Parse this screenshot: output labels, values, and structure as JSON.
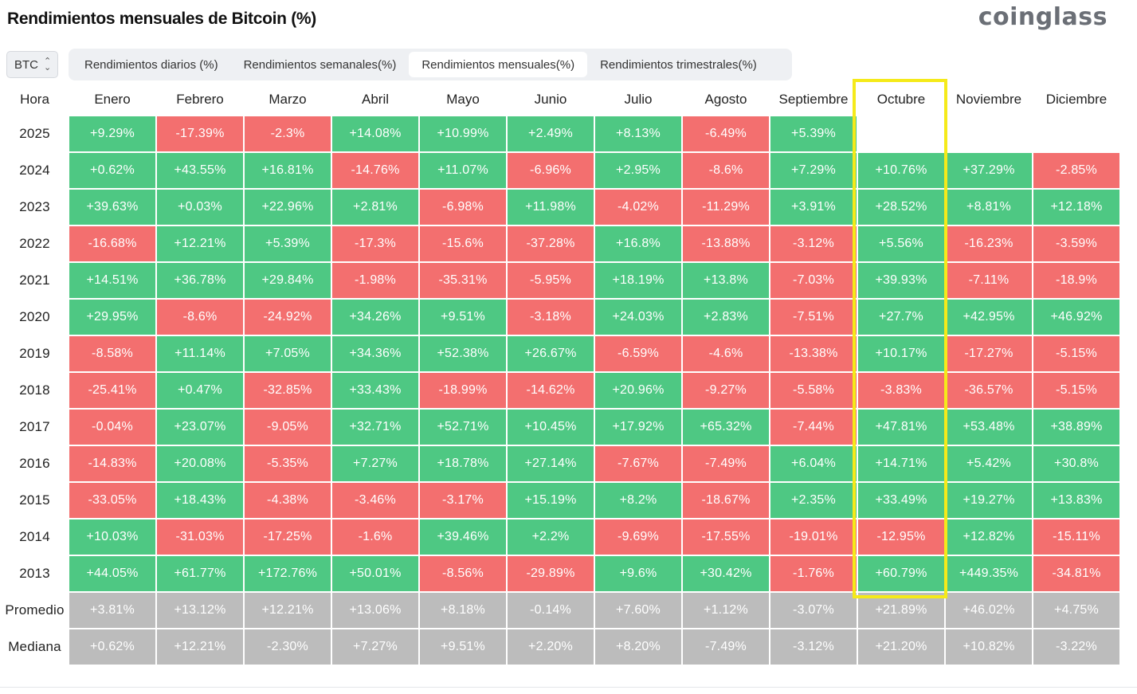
{
  "title": "Rendimientos mensuales de Bitcoin (%)",
  "brand": "coinglass",
  "asset_selector": {
    "value": "BTC"
  },
  "tabs": [
    {
      "label": "Rendimientos diarios (%)",
      "active": false
    },
    {
      "label": "Rendimientos semanales(%)",
      "active": false
    },
    {
      "label": "Rendimientos mensuales(%)",
      "active": true
    },
    {
      "label": "Rendimientos trimestrales(%)",
      "active": false
    }
  ],
  "colors": {
    "positive": "#4ec883",
    "negative": "#f36f6f",
    "stat": "#bcbcbc",
    "highlight": "#f5ea1a"
  },
  "table": {
    "row_header": "Hora",
    "columns": [
      "Enero",
      "Febrero",
      "Marzo",
      "Abril",
      "Mayo",
      "Junio",
      "Julio",
      "Agosto",
      "Septiembre",
      "Octubre",
      "Noviembre",
      "Diciembre"
    ],
    "highlighted_column": "Octubre",
    "rows": [
      {
        "label": "2025",
        "type": "year",
        "values": [
          "+9.29%",
          "-17.39%",
          "-2.3%",
          "+14.08%",
          "+10.99%",
          "+2.49%",
          "+8.13%",
          "-6.49%",
          "+5.39%",
          "",
          "",
          ""
        ]
      },
      {
        "label": "2024",
        "type": "year",
        "values": [
          "+0.62%",
          "+43.55%",
          "+16.81%",
          "-14.76%",
          "+11.07%",
          "-6.96%",
          "+2.95%",
          "-8.6%",
          "+7.29%",
          "+10.76%",
          "+37.29%",
          "-2.85%"
        ]
      },
      {
        "label": "2023",
        "type": "year",
        "values": [
          "+39.63%",
          "+0.03%",
          "+22.96%",
          "+2.81%",
          "-6.98%",
          "+11.98%",
          "-4.02%",
          "-11.29%",
          "+3.91%",
          "+28.52%",
          "+8.81%",
          "+12.18%"
        ]
      },
      {
        "label": "2022",
        "type": "year",
        "values": [
          "-16.68%",
          "+12.21%",
          "+5.39%",
          "-17.3%",
          "-15.6%",
          "-37.28%",
          "+16.8%",
          "-13.88%",
          "-3.12%",
          "+5.56%",
          "-16.23%",
          "-3.59%"
        ]
      },
      {
        "label": "2021",
        "type": "year",
        "values": [
          "+14.51%",
          "+36.78%",
          "+29.84%",
          "-1.98%",
          "-35.31%",
          "-5.95%",
          "+18.19%",
          "+13.8%",
          "-7.03%",
          "+39.93%",
          "-7.11%",
          "-18.9%"
        ]
      },
      {
        "label": "2020",
        "type": "year",
        "values": [
          "+29.95%",
          "-8.6%",
          "-24.92%",
          "+34.26%",
          "+9.51%",
          "-3.18%",
          "+24.03%",
          "+2.83%",
          "-7.51%",
          "+27.7%",
          "+42.95%",
          "+46.92%"
        ]
      },
      {
        "label": "2019",
        "type": "year",
        "values": [
          "-8.58%",
          "+11.14%",
          "+7.05%",
          "+34.36%",
          "+52.38%",
          "+26.67%",
          "-6.59%",
          "-4.6%",
          "-13.38%",
          "+10.17%",
          "-17.27%",
          "-5.15%"
        ]
      },
      {
        "label": "2018",
        "type": "year",
        "values": [
          "-25.41%",
          "+0.47%",
          "-32.85%",
          "+33.43%",
          "-18.99%",
          "-14.62%",
          "+20.96%",
          "-9.27%",
          "-5.58%",
          "-3.83%",
          "-36.57%",
          "-5.15%"
        ]
      },
      {
        "label": "2017",
        "type": "year",
        "values": [
          "-0.04%",
          "+23.07%",
          "-9.05%",
          "+32.71%",
          "+52.71%",
          "+10.45%",
          "+17.92%",
          "+65.32%",
          "-7.44%",
          "+47.81%",
          "+53.48%",
          "+38.89%"
        ]
      },
      {
        "label": "2016",
        "type": "year",
        "values": [
          "-14.83%",
          "+20.08%",
          "-5.35%",
          "+7.27%",
          "+18.78%",
          "+27.14%",
          "-7.67%",
          "-7.49%",
          "+6.04%",
          "+14.71%",
          "+5.42%",
          "+30.8%"
        ]
      },
      {
        "label": "2015",
        "type": "year",
        "values": [
          "-33.05%",
          "+18.43%",
          "-4.38%",
          "-3.46%",
          "-3.17%",
          "+15.19%",
          "+8.2%",
          "-18.67%",
          "+2.35%",
          "+33.49%",
          "+19.27%",
          "+13.83%"
        ]
      },
      {
        "label": "2014",
        "type": "year",
        "values": [
          "+10.03%",
          "-31.03%",
          "-17.25%",
          "-1.6%",
          "+39.46%",
          "+2.2%",
          "-9.69%",
          "-17.55%",
          "-19.01%",
          "-12.95%",
          "+12.82%",
          "-15.11%"
        ]
      },
      {
        "label": "2013",
        "type": "year",
        "values": [
          "+44.05%",
          "+61.77%",
          "+172.76%",
          "+50.01%",
          "-8.56%",
          "-29.89%",
          "+9.6%",
          "+30.42%",
          "-1.76%",
          "+60.79%",
          "+449.35%",
          "-34.81%"
        ]
      },
      {
        "label": "Promedio",
        "type": "stat",
        "values": [
          "+3.81%",
          "+13.12%",
          "+12.21%",
          "+13.06%",
          "+8.18%",
          "-0.14%",
          "+7.60%",
          "+1.12%",
          "-3.07%",
          "+21.89%",
          "+46.02%",
          "+4.75%"
        ]
      },
      {
        "label": "Mediana",
        "type": "stat",
        "values": [
          "+0.62%",
          "+12.21%",
          "-2.30%",
          "+7.27%",
          "+9.51%",
          "+2.20%",
          "+8.20%",
          "-7.49%",
          "-3.12%",
          "+21.20%",
          "+10.82%",
          "-3.22%"
        ]
      }
    ]
  }
}
